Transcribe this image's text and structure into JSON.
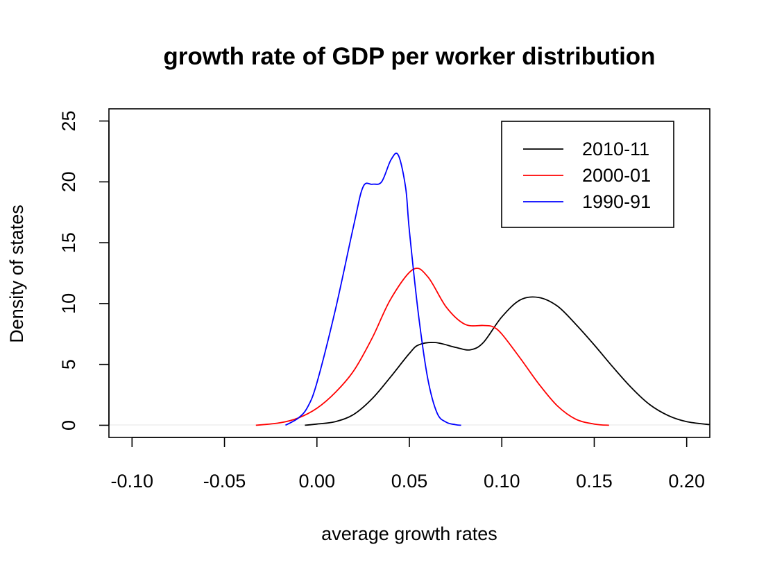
{
  "chart_data": {
    "type": "line",
    "title": "growth rate of GDP per worker distribution",
    "xlabel": "average growth rates",
    "ylabel": "Density of states",
    "xlim": [
      -0.1125,
      0.2125
    ],
    "ylim": [
      -1,
      26
    ],
    "x_ticks": [
      -0.1,
      -0.05,
      0.0,
      0.05,
      0.1,
      0.15,
      0.2
    ],
    "x_tick_labels": [
      "-0.10",
      "-0.05",
      "0.00",
      "0.05",
      "0.10",
      "0.15",
      "0.20"
    ],
    "y_ticks": [
      0,
      5,
      10,
      15,
      20,
      25
    ],
    "y_tick_labels": [
      "0",
      "5",
      "10",
      "15",
      "20",
      "25"
    ],
    "grid": false,
    "legend_position": "top-right",
    "series": [
      {
        "name": "2010-11",
        "color": "#000000",
        "x": [
          -0.0065,
          0.0,
          0.01,
          0.02,
          0.03,
          0.04,
          0.05,
          0.055,
          0.064,
          0.075,
          0.083,
          0.09,
          0.1,
          0.11,
          0.12,
          0.13,
          0.14,
          0.15,
          0.16,
          0.17,
          0.18,
          0.19,
          0.2,
          0.2125
        ],
        "y": [
          0.0,
          0.1,
          0.3,
          0.9,
          2.2,
          4.0,
          5.9,
          6.6,
          6.8,
          6.4,
          6.2,
          6.8,
          8.9,
          10.3,
          10.5,
          9.8,
          8.3,
          6.6,
          4.8,
          3.1,
          1.7,
          0.8,
          0.3,
          0.05
        ]
      },
      {
        "name": "2000-01",
        "color": "#ff0000",
        "x": [
          -0.033,
          -0.02,
          -0.01,
          0.0,
          0.01,
          0.02,
          0.03,
          0.04,
          0.052,
          0.06,
          0.07,
          0.08,
          0.09,
          0.095,
          0.1,
          0.11,
          0.12,
          0.13,
          0.14,
          0.15,
          0.158
        ],
        "y": [
          0.0,
          0.2,
          0.6,
          1.4,
          2.7,
          4.5,
          7.2,
          10.4,
          12.8,
          12.2,
          9.7,
          8.3,
          8.2,
          8.1,
          7.5,
          5.5,
          3.4,
          1.6,
          0.5,
          0.1,
          0.0
        ]
      },
      {
        "name": "1990-91",
        "color": "#0000ff",
        "x": [
          -0.017,
          -0.01,
          -0.005,
          0.0,
          0.01,
          0.02,
          0.025,
          0.03,
          0.035,
          0.04,
          0.044,
          0.048,
          0.05,
          0.055,
          0.06,
          0.065,
          0.07,
          0.075,
          0.078
        ],
        "y": [
          0.0,
          0.6,
          1.5,
          3.5,
          9.5,
          16.5,
          19.6,
          19.8,
          20.0,
          21.8,
          22.2,
          19.5,
          16.0,
          9.0,
          3.8,
          1.0,
          0.25,
          0.05,
          0.0
        ]
      }
    ]
  }
}
